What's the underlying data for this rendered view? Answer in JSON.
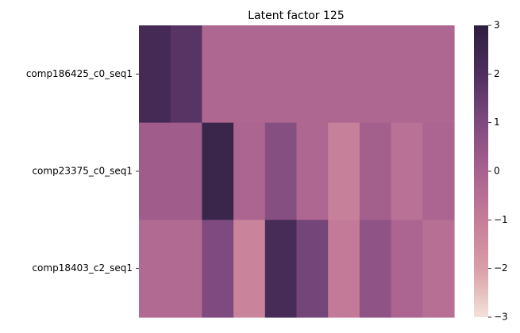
{
  "chart_data": {
    "type": "heatmap",
    "title": "Latent factor 125",
    "xlabel": "",
    "ylabel": "",
    "rows": [
      "comp186425_c0_seq1",
      "comp23375_c0_seq1",
      "comp18403_c2_seq1"
    ],
    "columns": [
      "",
      "",
      "",
      "",
      "",
      "",
      "",
      "",
      "",
      ""
    ],
    "values": [
      [
        2.3,
        1.8,
        -0.2,
        -0.2,
        -0.2,
        -0.2,
        -0.2,
        -0.2,
        -0.2,
        -0.2
      ],
      [
        0.2,
        0.2,
        2.6,
        -0.1,
        0.8,
        -0.2,
        -1.1,
        0.1,
        -0.6,
        -0.1
      ],
      [
        -0.3,
        -0.3,
        1.0,
        -1.2,
        2.2,
        1.2,
        -0.9,
        0.6,
        -0.1,
        -0.5
      ]
    ],
    "colorbar": {
      "min": -3,
      "max": 3,
      "ticks": [
        "3",
        "2",
        "1",
        "0",
        "−1",
        "−2",
        "−3"
      ],
      "tick_values": [
        3,
        2,
        1,
        0,
        -1,
        -2,
        -3
      ]
    },
    "colormap": [
      "#f4e2dc",
      "#d89ea6",
      "#c57d99",
      "#a8628f",
      "#7e4a7f",
      "#4e2f5e",
      "#2d1e3e"
    ],
    "grid": false,
    "legend": "colorbar-right"
  }
}
